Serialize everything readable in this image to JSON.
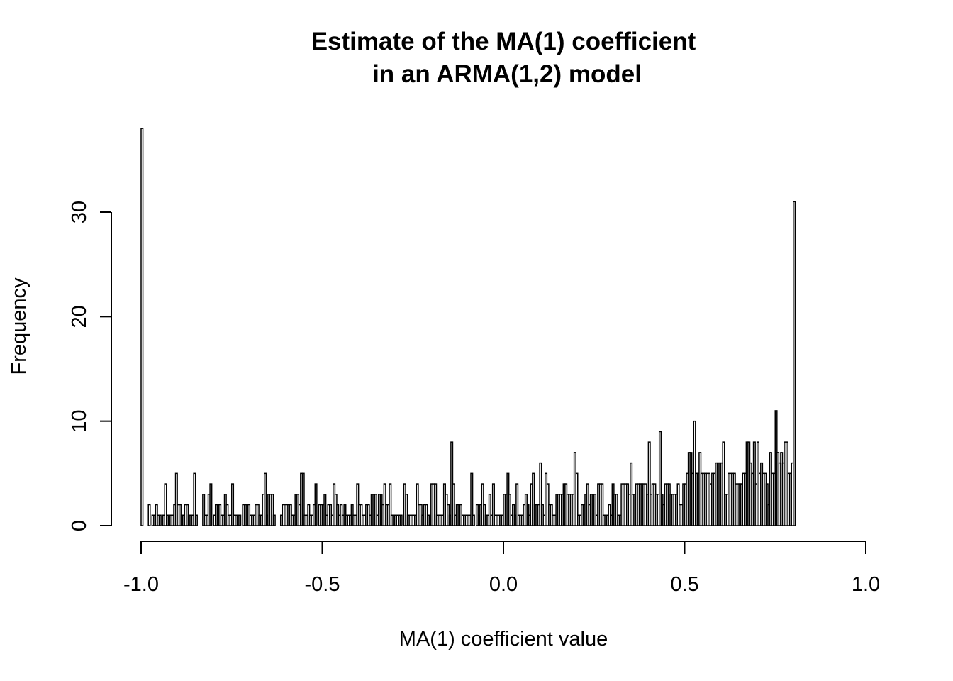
{
  "chart_data": {
    "type": "bar",
    "title_lines": [
      "Estimate of the MA(1) coefficient",
      "in an ARMA(1,2) model"
    ],
    "xlabel": "MA(1) coefficient value",
    "ylabel": "Frequency",
    "xlim": [
      -1.0,
      1.0
    ],
    "ylim": [
      0,
      38
    ],
    "x_ticks": [
      -1.0,
      -0.5,
      0.0,
      0.5,
      1.0
    ],
    "x_tick_labels": [
      "-1.0",
      "-0.5",
      "0.0",
      "0.5",
      "1.0"
    ],
    "y_ticks": [
      0,
      10,
      20,
      30
    ],
    "y_tick_labels": [
      "0",
      "10",
      "20",
      "30"
    ],
    "bin_width": 0.005,
    "bin_start": -1.0,
    "values": [
      38,
      0,
      0,
      0,
      2,
      0,
      1,
      1,
      2,
      1,
      1,
      0,
      1,
      4,
      1,
      1,
      1,
      1,
      2,
      5,
      2,
      2,
      1,
      1,
      2,
      2,
      1,
      1,
      1,
      5,
      1,
      0,
      0,
      0,
      3,
      1,
      1,
      3,
      4,
      0,
      1,
      2,
      2,
      2,
      1,
      1,
      3,
      2,
      1,
      1,
      4,
      1,
      1,
      1,
      1,
      0,
      2,
      2,
      2,
      2,
      1,
      1,
      1,
      2,
      2,
      1,
      1,
      3,
      5,
      1,
      3,
      3,
      3,
      1,
      0,
      0,
      0,
      1,
      2,
      2,
      2,
      2,
      2,
      1,
      1,
      3,
      3,
      2,
      5,
      5,
      1,
      1,
      2,
      1,
      1,
      2,
      4,
      0,
      2,
      2,
      2,
      3,
      1,
      2,
      2,
      1,
      4,
      3,
      2,
      1,
      2,
      1,
      2,
      1,
      1,
      1,
      2,
      1,
      1,
      4,
      2,
      2,
      1,
      1,
      2,
      2,
      1,
      3,
      3,
      3,
      1,
      3,
      3,
      2,
      4,
      2,
      2,
      4,
      1,
      1,
      1,
      1,
      1,
      1,
      0,
      4,
      3,
      1,
      1,
      1,
      1,
      1,
      4,
      2,
      2,
      1,
      2,
      2,
      1,
      1,
      4,
      4,
      4,
      1,
      1,
      1,
      1,
      4,
      3,
      2,
      1,
      8,
      4,
      1,
      2,
      2,
      2,
      1,
      1,
      1,
      1,
      1,
      5,
      1,
      0,
      2,
      1,
      2,
      4,
      2,
      1,
      1,
      3,
      1,
      4,
      1,
      1,
      1,
      1,
      1,
      3,
      3,
      5,
      3,
      1,
      2,
      1,
      4,
      1,
      1,
      1,
      2,
      3,
      2,
      1,
      4,
      5,
      2,
      2,
      2,
      6,
      2,
      1,
      5,
      4,
      2,
      2,
      1,
      1,
      3,
      3,
      3,
      3,
      4,
      4,
      3,
      3,
      3,
      3,
      7,
      5,
      1,
      1,
      2,
      2,
      3,
      4,
      2,
      3,
      3,
      3,
      1,
      4,
      4,
      4,
      1,
      1,
      1,
      2,
      1,
      4,
      3,
      3,
      1,
      1,
      4,
      4,
      4,
      4,
      3,
      6,
      3,
      3,
      4,
      4,
      4,
      4,
      4,
      4,
      3,
      8,
      3,
      4,
      4,
      3,
      3,
      9,
      3,
      2,
      4,
      4,
      4,
      3,
      3,
      3,
      3,
      4,
      2,
      2,
      4,
      4,
      5,
      7,
      7,
      5,
      10,
      5,
      5,
      7,
      5,
      5,
      5,
      5,
      5,
      4,
      5,
      5,
      6,
      6,
      6,
      6,
      8,
      3,
      3,
      5,
      5,
      5,
      5,
      4,
      4,
      4,
      4,
      5,
      5,
      8,
      8,
      6,
      5,
      8,
      4,
      8,
      5,
      6,
      5,
      5,
      4,
      2,
      7,
      5,
      5,
      11,
      7,
      6,
      7,
      6,
      8,
      8,
      5,
      5,
      6,
      31
    ]
  }
}
